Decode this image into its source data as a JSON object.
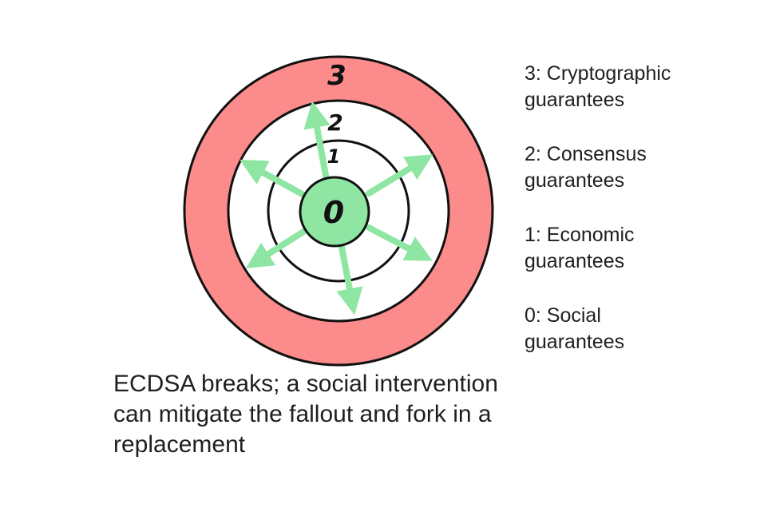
{
  "diagram": {
    "rings": [
      {
        "number": "3",
        "meaning": "Cryptographic guarantees",
        "color": "#fc8b8b"
      },
      {
        "number": "2",
        "meaning": "Consensus guarantees",
        "color": "#ffffff"
      },
      {
        "number": "1",
        "meaning": "Economic guarantees",
        "color": "#ffffff"
      },
      {
        "number": "0",
        "meaning": "Social guarantees",
        "color": "#8fe6a3"
      }
    ],
    "arrow_color": "#8fe6a3",
    "arrow_count": 6
  },
  "legend": {
    "items": [
      {
        "line1": "3: Cryptographic",
        "line2": "guarantees"
      },
      {
        "line1": "2: Consensus",
        "line2": "guarantees"
      },
      {
        "line1": "1: Economic",
        "line2": "guarantees"
      },
      {
        "line1": "0: Social",
        "line2": "guarantees"
      }
    ]
  },
  "caption": {
    "line1": "ECDSA breaks; a social intervention",
    "line2": "can mitigate the fallout and fork in a",
    "line3": "replacement"
  }
}
